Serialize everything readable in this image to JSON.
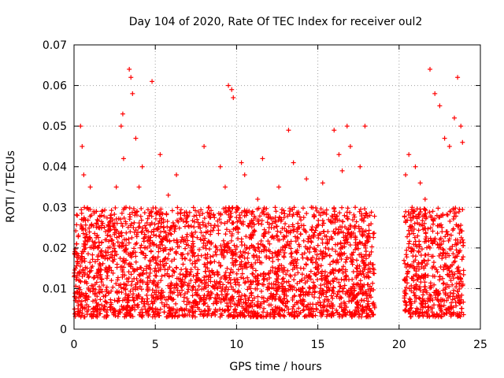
{
  "chart_data": {
    "type": "scatter",
    "title": "Day 104 of 2020, Rate Of TEC Index for receiver oul2",
    "xlabel": "GPS time / hours",
    "ylabel": "ROTI / TECUs",
    "xlim": [
      0,
      25
    ],
    "ylim": [
      0,
      0.07
    ],
    "xticks": [
      "0",
      "5",
      "10",
      "15",
      "20",
      "25"
    ],
    "yticks": [
      "0",
      "0.01",
      "0.02",
      "0.03",
      "0.04",
      "0.05",
      "0.06",
      "0.07"
    ],
    "grid": true,
    "marker": "+",
    "color": "#ff0000",
    "coverage": [
      [
        0,
        18.5
      ],
      [
        20.3,
        24
      ]
    ],
    "typical_range": [
      0.003,
      0.03
    ],
    "series": [
      {
        "x": [
          0.05,
          0.2,
          0.3,
          0.4,
          0.5,
          0.6,
          0.7,
          0.8,
          1.0,
          1.2,
          1.5,
          1.8,
          2.0,
          2.3,
          2.6,
          2.9,
          3.0,
          3.05,
          3.2,
          3.4,
          3.5,
          3.6,
          3.8,
          4.0,
          4.2,
          4.5,
          4.8,
          5.0,
          5.3,
          5.5,
          5.8,
          6.0,
          6.3,
          6.6,
          6.9,
          7.2,
          7.5,
          8.0,
          8.3,
          8.6,
          9.0,
          9.3,
          9.5,
          9.7,
          9.8,
          10.0,
          10.3,
          10.5,
          10.8,
          11.0,
          11.3,
          11.6,
          12.0,
          12.3,
          12.6,
          12.9,
          13.2,
          13.5,
          13.8,
          14.0,
          14.3,
          14.6,
          15.0,
          15.3,
          15.6,
          16.0,
          16.3,
          16.5,
          16.8,
          17.0,
          17.3,
          17.6,
          17.9,
          18.2,
          18.4,
          20.4,
          20.6,
          20.8,
          21.0,
          21.3,
          21.6,
          21.9,
          22.2,
          22.5,
          22.8,
          23.1,
          23.4,
          23.6,
          23.8,
          23.9
        ],
        "y": [
          0.008,
          0.028,
          0.012,
          0.05,
          0.045,
          0.038,
          0.02,
          0.015,
          0.035,
          0.01,
          0.025,
          0.018,
          0.022,
          0.012,
          0.035,
          0.05,
          0.053,
          0.042,
          0.03,
          0.064,
          0.062,
          0.058,
          0.047,
          0.035,
          0.04,
          0.02,
          0.061,
          0.015,
          0.043,
          0.025,
          0.033,
          0.011,
          0.038,
          0.027,
          0.005,
          0.02,
          0.009,
          0.045,
          0.03,
          0.025,
          0.04,
          0.035,
          0.06,
          0.059,
          0.057,
          0.03,
          0.041,
          0.038,
          0.02,
          0.015,
          0.032,
          0.042,
          0.025,
          0.01,
          0.035,
          0.018,
          0.049,
          0.041,
          0.025,
          0.012,
          0.037,
          0.03,
          0.015,
          0.036,
          0.022,
          0.049,
          0.043,
          0.039,
          0.05,
          0.045,
          0.03,
          0.04,
          0.05,
          0.028,
          0.015,
          0.038,
          0.043,
          0.03,
          0.04,
          0.036,
          0.032,
          0.064,
          0.058,
          0.055,
          0.047,
          0.045,
          0.052,
          0.062,
          0.05,
          0.046
        ]
      }
    ]
  }
}
